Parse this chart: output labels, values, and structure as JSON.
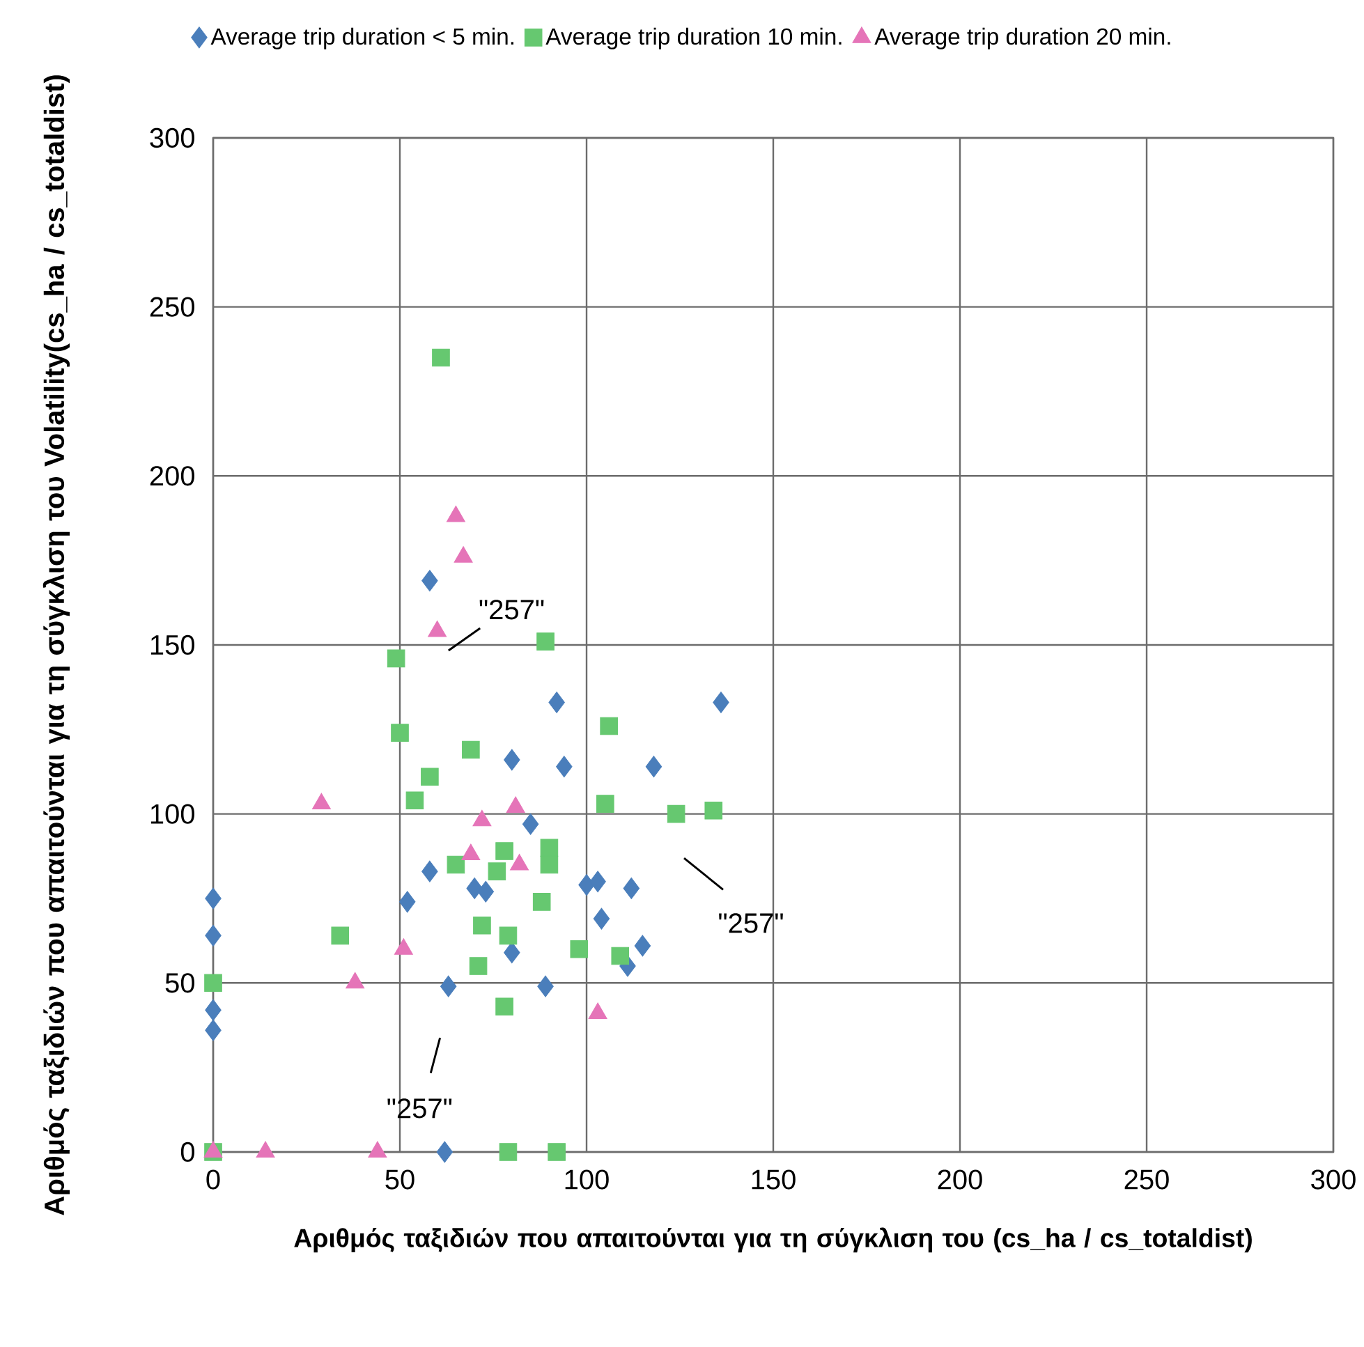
{
  "chart_data": {
    "type": "scatter",
    "xlabel": "Αριθμός ταξιδιών που απαιτούνται για τη σύγκλιση του (cs_ha / cs_totaldist)",
    "ylabel": "Αριθμός ταξιδιών που απαιτούνται για τη σύγκλιση του Volatility(cs_ha / cs_totaldist)",
    "xlim": [
      0,
      300
    ],
    "ylim": [
      0,
      300
    ],
    "xticks": [
      0,
      50,
      100,
      150,
      200,
      250,
      300
    ],
    "yticks": [
      0,
      50,
      100,
      150,
      200,
      250,
      300
    ],
    "grid": true,
    "legend": "top",
    "series": [
      {
        "name": "Average trip duration < 5 min.",
        "color": "#4a7ebb",
        "marker": "diamond",
        "x": [
          0,
          0,
          0,
          0,
          62,
          58,
          92,
          136,
          80,
          94,
          118,
          85,
          58,
          70,
          73,
          100,
          103,
          112,
          52,
          104,
          115,
          80,
          111,
          63,
          89
        ],
        "values": [
          75,
          64,
          42,
          36,
          0,
          169,
          133,
          133,
          116,
          114,
          114,
          97,
          83,
          78,
          77,
          79,
          80,
          78,
          74,
          69,
          61,
          59,
          55,
          49,
          49
        ]
      },
      {
        "name": "Average trip duration 10 min.",
        "color": "#66c870",
        "marker": "square",
        "x": [
          61,
          89,
          49,
          106,
          50,
          69,
          58,
          54,
          105,
          124,
          134,
          90,
          78,
          90,
          65,
          76,
          88,
          72,
          34,
          79,
          98,
          109,
          71,
          0,
          78,
          0,
          79,
          92
        ],
        "values": [
          235,
          151,
          146,
          126,
          124,
          119,
          111,
          104,
          103,
          100,
          101,
          90,
          89,
          85,
          85,
          83,
          74,
          67,
          64,
          64,
          60,
          58,
          55,
          50,
          43,
          0,
          0,
          0
        ]
      },
      {
        "name": "Average trip duration 20 min.",
        "color": "#e574b8",
        "marker": "triangle",
        "x": [
          65,
          67,
          60,
          29,
          81,
          72,
          69,
          82,
          51,
          38,
          103,
          0,
          14,
          44
        ],
        "values": [
          188,
          176,
          154,
          103,
          102,
          98,
          88,
          85,
          60,
          50,
          41,
          0,
          0,
          0
        ]
      }
    ],
    "annotations": [
      "\"257\"",
      "\"257\"",
      "\"257\""
    ]
  }
}
